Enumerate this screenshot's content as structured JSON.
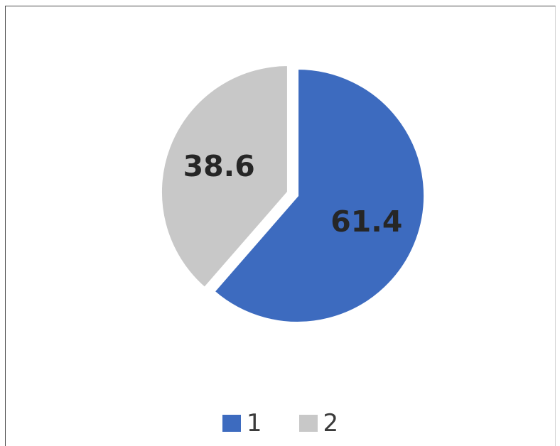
{
  "chart_data": {
    "type": "pie",
    "title": "",
    "categories": [
      "1",
      "2"
    ],
    "values": [
      61.4,
      38.6
    ],
    "data_labels": [
      "61.4",
      "38.6"
    ],
    "colors": [
      "#3d6bbf",
      "#c8c8c8"
    ],
    "exploded": true,
    "start_angle_deg": 0,
    "direction": "clockwise",
    "legend_position": "bottom"
  },
  "legend": {
    "items": [
      {
        "label": "1",
        "color": "#3d6bbf"
      },
      {
        "label": "2",
        "color": "#c8c8c8"
      }
    ]
  }
}
